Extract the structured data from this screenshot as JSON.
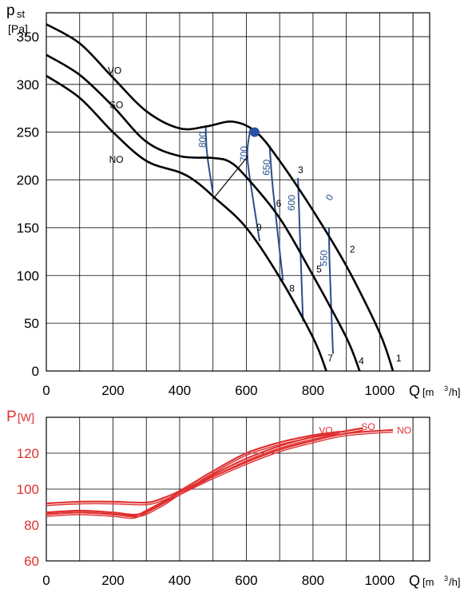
{
  "chart_data": [
    {
      "type": "line",
      "ylabel_symbol": "p",
      "ylabel_sub": "st",
      "yunit": "[Pa]",
      "xlabel": "Q",
      "xunit": "[m",
      "xunit_sup": "3",
      "xunit_end": "/h]",
      "xlim": [
        0,
        1150
      ],
      "ylim": [
        0,
        375
      ],
      "xticks": [
        "0",
        "200",
        "400",
        "600",
        "800",
        "1000"
      ],
      "xtick_values": [
        0,
        200,
        400,
        600,
        800,
        1000
      ],
      "yticks": [
        "0",
        "50",
        "100",
        "150",
        "200",
        "250",
        "300",
        "350"
      ],
      "ytick_values": [
        0,
        50,
        100,
        150,
        200,
        250,
        300,
        350
      ],
      "grid": true,
      "series": [
        {
          "name": "VO",
          "label_at": [
            205,
            311
          ],
          "x": [
            0,
            100,
            200,
            300,
            400,
            480,
            560,
            630,
            700,
            800,
            900,
            1000,
            1040
          ],
          "y": [
            363,
            343,
            307,
            272,
            254,
            256,
            261,
            250,
            220,
            168,
            110,
            40,
            0
          ]
        },
        {
          "name": "SO",
          "label_at": [
            210,
            275
          ],
          "x": [
            0,
            100,
            200,
            300,
            400,
            500,
            550,
            600,
            700,
            800,
            900,
            940
          ],
          "y": [
            331,
            310,
            277,
            240,
            225,
            223,
            219,
            203,
            160,
            100,
            35,
            0
          ]
        },
        {
          "name": "NO",
          "label_at": [
            210,
            218
          ],
          "x": [
            0,
            100,
            200,
            300,
            400,
            450,
            500,
            600,
            700,
            800,
            840
          ],
          "y": [
            309,
            286,
            250,
            220,
            208,
            198,
            183,
            150,
            98,
            35,
            0
          ]
        }
      ],
      "rpm_lines": [
        {
          "label": "800",
          "label_at": [
            478,
            242
          ],
          "x": [
            478,
            482,
            500
          ],
          "y": [
            257,
            228,
            186
          ]
        },
        {
          "label": "700",
          "label_at": [
            602,
            227
          ],
          "x": [
            612,
            603,
            620,
            640
          ],
          "y": [
            253,
            225,
            180,
            136
          ]
        },
        {
          "label": "650",
          "label_at": [
            670,
            213
          ],
          "x": [
            670,
            680,
            710
          ],
          "y": [
            236,
            190,
            95
          ]
        },
        {
          "label": "600",
          "label_at": [
            745,
            176
          ],
          "x": [
            755,
            760,
            770
          ],
          "y": [
            202,
            150,
            52
          ]
        },
        {
          "label": "550",
          "label_at": [
            842,
            118
          ],
          "x": [
            848,
            850,
            860
          ],
          "y": [
            150,
            110,
            18
          ]
        }
      ],
      "system_line": {
        "x": [
          605,
          500
        ],
        "y": [
          225,
          180
        ]
      },
      "operating_point": {
        "x": 625,
        "y": 250
      },
      "point_labels": [
        {
          "text": "1",
          "at": [
            1057,
            10
          ]
        },
        {
          "text": "2",
          "at": [
            918,
            124
          ]
        },
        {
          "text": "3",
          "at": [
            763,
            207
          ]
        },
        {
          "text": "4",
          "at": [
            945,
            7
          ]
        },
        {
          "text": "5",
          "at": [
            818,
            103
          ]
        },
        {
          "text": "6",
          "at": [
            697,
            172
          ]
        },
        {
          "text": "7",
          "at": [
            852,
            10
          ]
        },
        {
          "text": "8",
          "at": [
            737,
            83
          ]
        },
        {
          "text": "9",
          "at": [
            638,
            147
          ]
        }
      ],
      "extra_label": {
        "text": "0",
        "at": [
          858,
          180
        ]
      }
    },
    {
      "type": "line",
      "ylabel_symbol": "P",
      "yunit": "[W]",
      "xlabel": "Q",
      "xunit": "[m",
      "xunit_sup": "3",
      "xunit_end": "/h]",
      "xlim": [
        0,
        1150
      ],
      "ylim": [
        60,
        140
      ],
      "xticks": [
        "0",
        "200",
        "400",
        "600",
        "800",
        "1000"
      ],
      "xtick_values": [
        0,
        200,
        400,
        600,
        800,
        1000
      ],
      "yticks": [
        "60",
        "80",
        "100",
        "120"
      ],
      "ytick_values": [
        60,
        80,
        100,
        120
      ],
      "grid": true,
      "series": [
        {
          "name": "VO",
          "label_at": [
            818,
            131
          ],
          "x": [
            0,
            100,
            200,
            300,
            350,
            400,
            500,
            600,
            700,
            800,
            880
          ],
          "y": [
            92,
            93,
            93,
            92.5,
            95,
            99,
            110,
            120,
            126,
            130,
            132
          ]
        },
        {
          "name": "SO",
          "label_at": [
            945,
            133
          ],
          "x": [
            0,
            100,
            200,
            280,
            350,
            400,
            500,
            600,
            700,
            800,
            950
          ],
          "y": [
            87,
            88,
            87,
            86,
            92,
            98,
            108,
            117,
            124,
            129,
            134
          ]
        },
        {
          "name": "NO",
          "label_at": [
            1052,
            131
          ],
          "x": [
            0,
            100,
            200,
            260,
            300,
            350,
            400,
            500,
            600,
            700,
            800,
            900,
            1040
          ],
          "y": [
            86,
            87,
            86,
            85,
            88,
            93,
            98,
            107,
            115,
            122,
            127,
            131,
            133
          ]
        }
      ]
    }
  ],
  "colors": {
    "pressure_curve": "#000000",
    "rpm_line": "#2b4f8c",
    "power_curve": "#e03030",
    "grid": "#000000"
  }
}
